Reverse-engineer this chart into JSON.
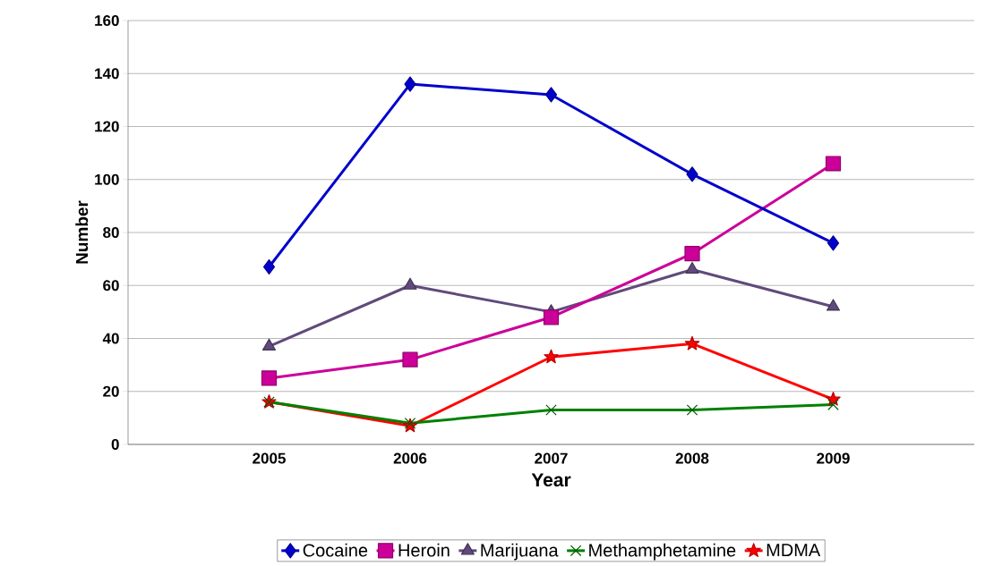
{
  "chart_data": {
    "type": "line",
    "xlabel": "Year",
    "ylabel": "Number",
    "categories": [
      "2005",
      "2006",
      "2007",
      "2008",
      "2009"
    ],
    "series": [
      {
        "name": "Cocaine",
        "color": "#0000cc",
        "marker": "diamond",
        "values": [
          67,
          136,
          132,
          102,
          76
        ]
      },
      {
        "name": "Heroin",
        "color": "#cc0099",
        "marker": "square",
        "values": [
          25,
          32,
          48,
          72,
          106
        ]
      },
      {
        "name": "Marijuana",
        "color": "#604a7b",
        "marker": "triangle",
        "values": [
          37,
          60,
          50,
          66,
          52
        ]
      },
      {
        "name": "Methamphetamine",
        "color": "#008000",
        "marker": "cross",
        "values": [
          16,
          8,
          13,
          13,
          15
        ]
      },
      {
        "name": "MDMA",
        "color": "#ff0000",
        "marker": "star",
        "values": [
          16,
          7,
          33,
          38,
          17
        ]
      }
    ],
    "ylim": [
      0,
      160
    ],
    "yticks": [
      0,
      20,
      40,
      60,
      80,
      100,
      120,
      140,
      160
    ],
    "grid": "y",
    "legend": "bottom",
    "line_style": "solid"
  }
}
